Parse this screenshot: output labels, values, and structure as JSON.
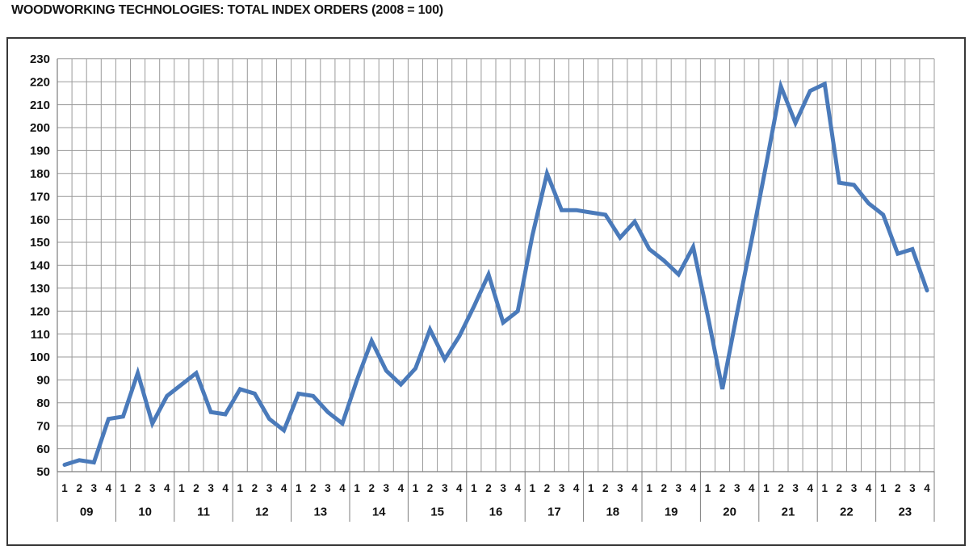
{
  "title": "WOODWORKING TECHNOLOGIES: TOTAL INDEX ORDERS (2008 = 100)",
  "chart_data": {
    "type": "line",
    "title": "WOODWORKING TECHNOLOGIES: TOTAL INDEX ORDERS (2008 = 100)",
    "xlabel": "",
    "ylabel": "",
    "ylim": [
      50,
      230
    ],
    "ytick_step": 10,
    "yticks": [
      50,
      60,
      70,
      80,
      90,
      100,
      110,
      120,
      130,
      140,
      150,
      160,
      170,
      180,
      190,
      200,
      210,
      220,
      230
    ],
    "grid": true,
    "legend_position": "none",
    "x_structure": "quarters-grouped-by-year",
    "quarter_labels": [
      "1",
      "2",
      "3",
      "4"
    ],
    "years": [
      "09",
      "10",
      "11",
      "12",
      "13",
      "14",
      "15",
      "16",
      "17",
      "18",
      "19",
      "20",
      "21",
      "22",
      "23"
    ],
    "series": [
      {
        "name": "Total index orders (2008 = 100)",
        "values": [
          53,
          55,
          54,
          73,
          74,
          93,
          71,
          83,
          88,
          93,
          76,
          75,
          86,
          84,
          73,
          68,
          84,
          83,
          76,
          71,
          90,
          107,
          94,
          88,
          95,
          112,
          99,
          109,
          122,
          136,
          115,
          120,
          153,
          180,
          164,
          164,
          163,
          162,
          152,
          159,
          147,
          142,
          136,
          148,
          118,
          86,
          119,
          151,
          184,
          218,
          202,
          216,
          219,
          176,
          175,
          167,
          162,
          145,
          147,
          129
        ]
      }
    ],
    "colors": {
      "line": "#4A7ABA",
      "grid": "#9A9A9A",
      "axis": "#7D7D7D",
      "border": "#383838",
      "text": "#111111",
      "background": "#FFFFFF"
    }
  }
}
